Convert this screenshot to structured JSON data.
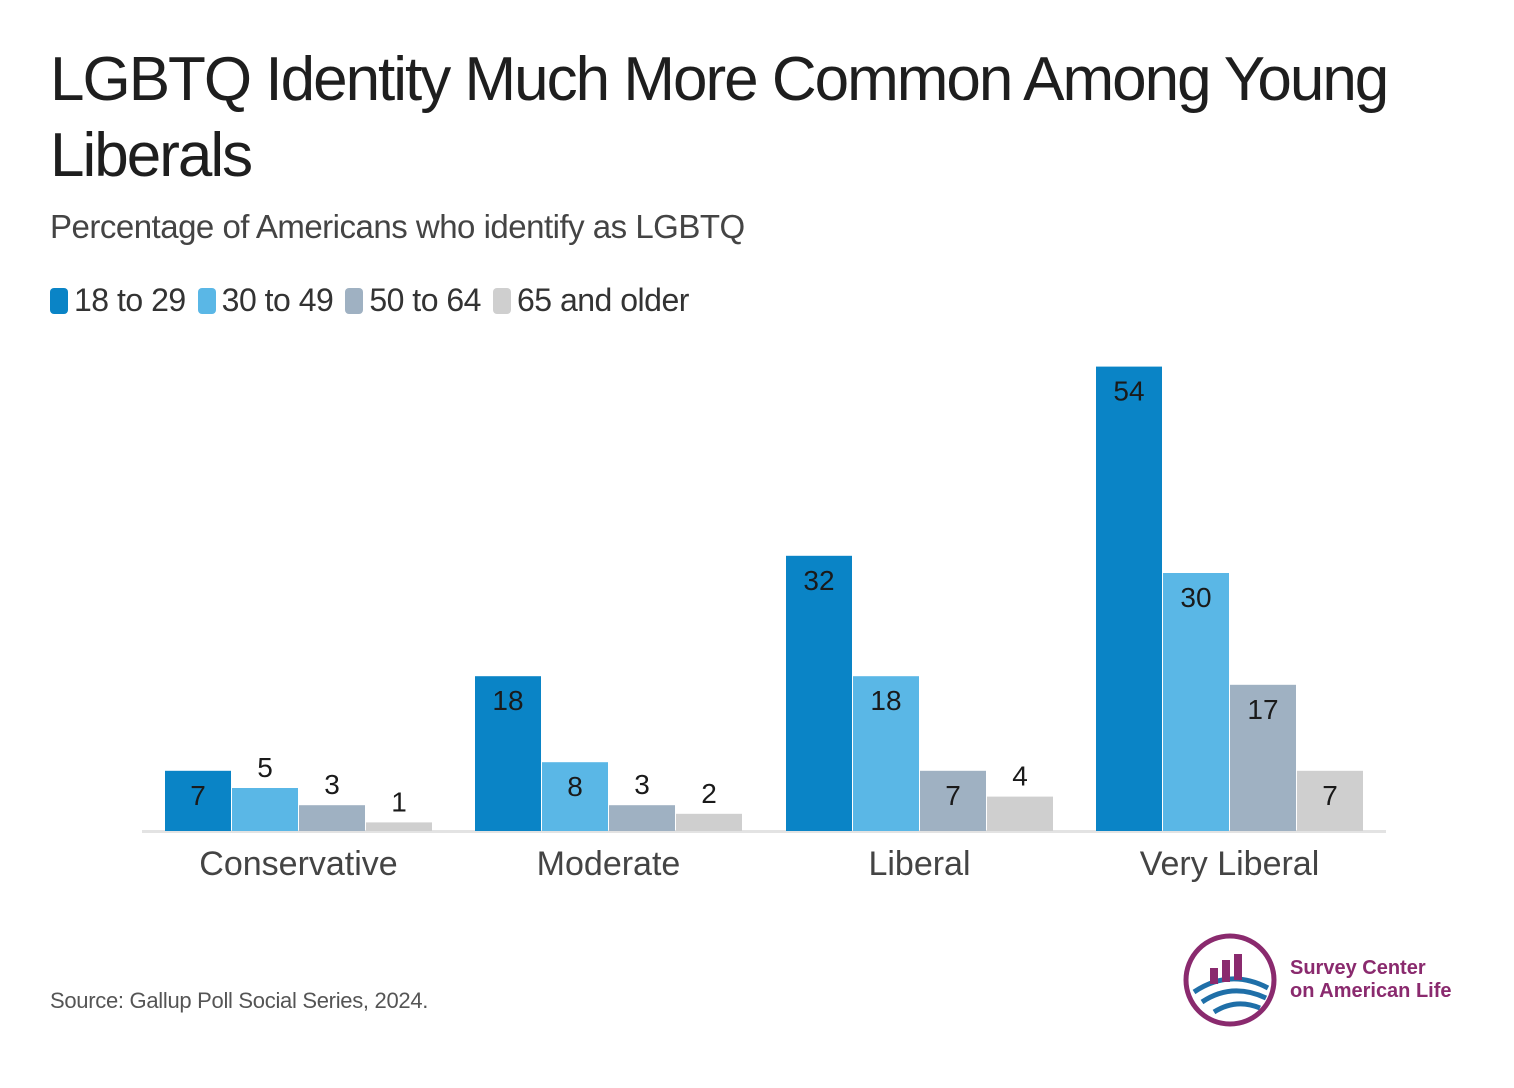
{
  "title": "LGBTQ Identity Much More Common Among Young Liberals",
  "subtitle": "Percentage of Americans who identify as LGBTQ",
  "legend": [
    {
      "label": "18 to 29",
      "color": "#0a84c6"
    },
    {
      "label": "30 to 49",
      "color": "#5ab7e6"
    },
    {
      "label": "50 to 64",
      "color": "#9fb1c2"
    },
    {
      "label": "65 and older",
      "color": "#cfcfcf"
    }
  ],
  "chart_data": {
    "type": "bar",
    "title": "LGBTQ Identity Much More Common Among Young Liberals",
    "subtitle": "Percentage of Americans who identify as LGBTQ",
    "categories": [
      "Conservative",
      "Moderate",
      "Liberal",
      "Very Liberal"
    ],
    "series": [
      {
        "name": "18 to 29",
        "values": [
          7,
          18,
          32,
          54
        ]
      },
      {
        "name": "30 to 49",
        "values": [
          5,
          8,
          18,
          30
        ]
      },
      {
        "name": "50 to 64",
        "values": [
          3,
          3,
          7,
          17
        ]
      },
      {
        "name": "65 and older",
        "values": [
          1,
          2,
          4,
          7
        ]
      }
    ],
    "xlabel": "",
    "ylabel": "",
    "ylim": [
      0,
      54
    ],
    "grid": false,
    "legend_position": "top-left",
    "data_labels": true
  },
  "source": "Source: Gallup Poll Social Series, 2024.",
  "logo": {
    "line1": "Survey Center",
    "line2": "on American Life",
    "colors": {
      "purple": "#8a2a6e",
      "blue": "#1f6fa8"
    }
  }
}
